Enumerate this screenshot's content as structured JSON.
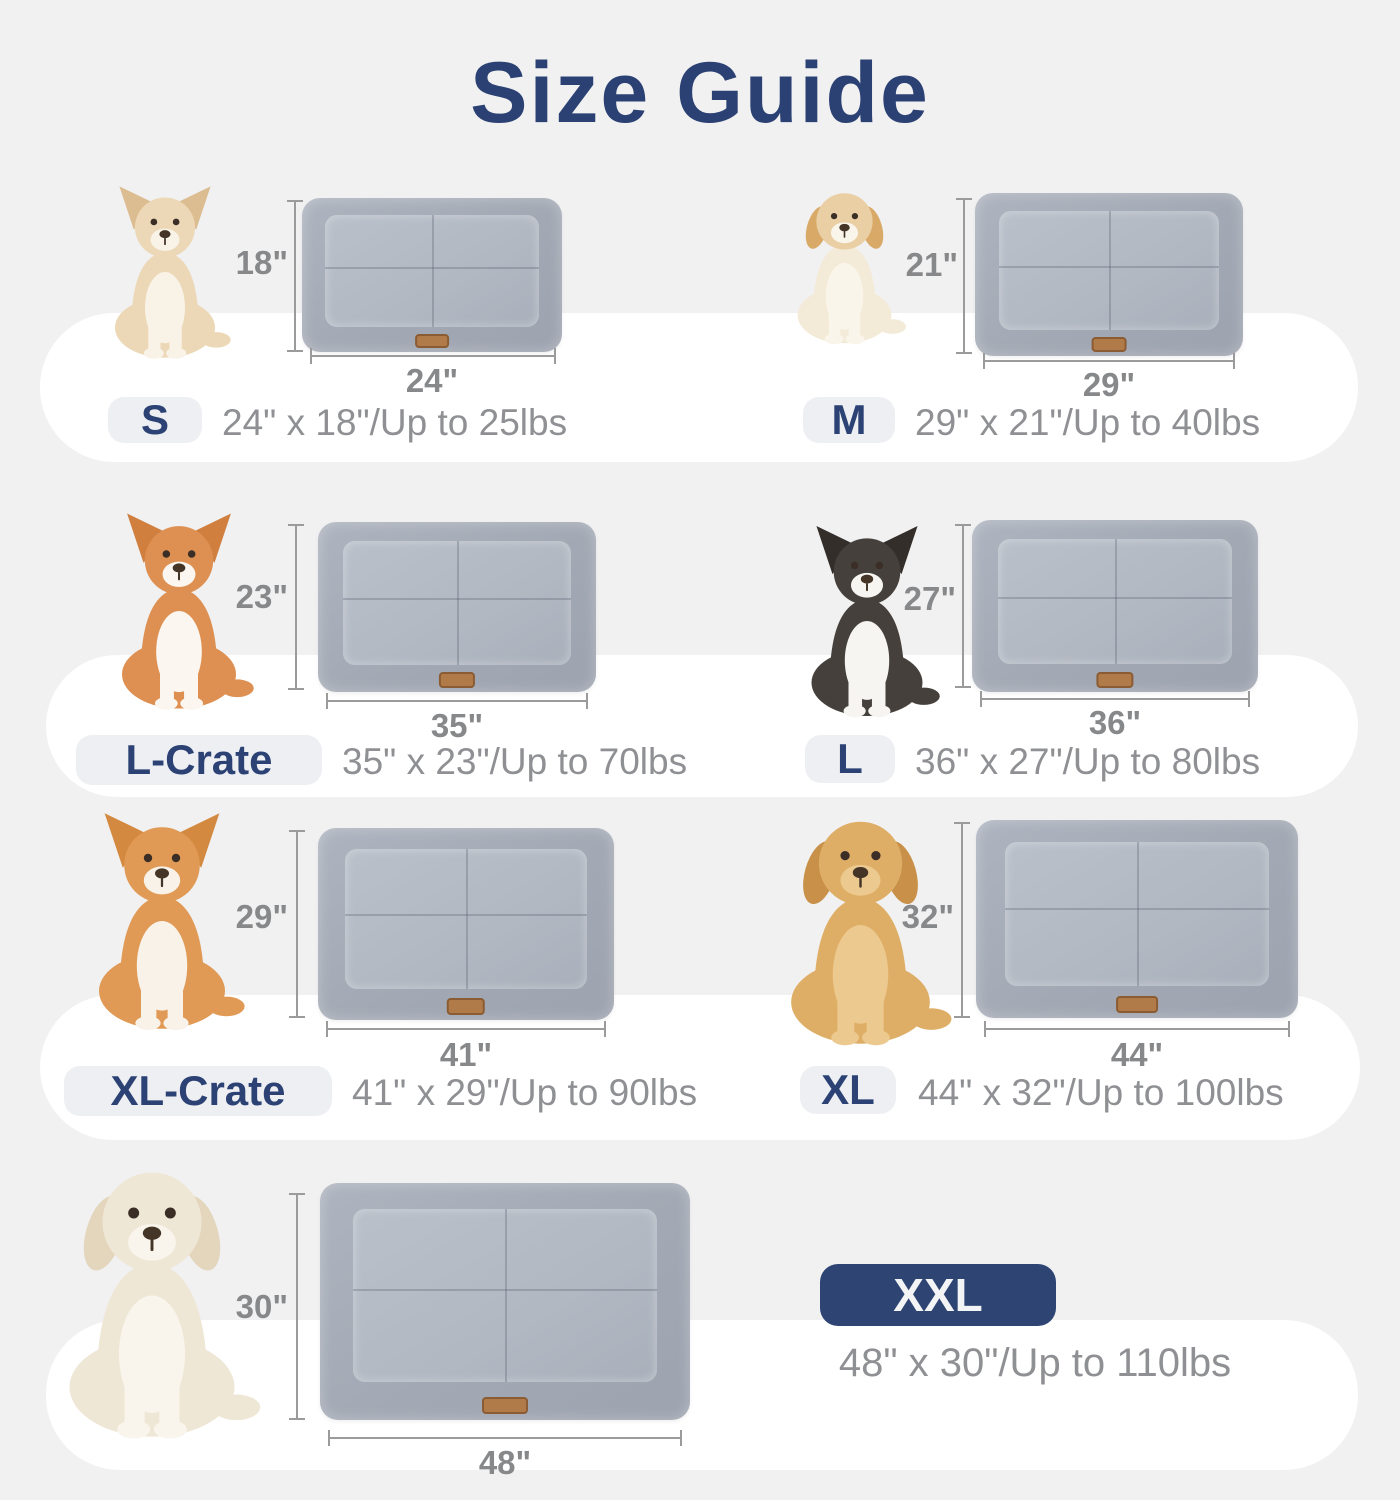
{
  "title": "Size Guide",
  "colors": {
    "background": "#f1f1f2",
    "band": "#ffffff",
    "navy": "#2c4274",
    "badge_bg": "#edeff3",
    "xxl_badge_bg": "#2e4573",
    "spec_text": "#8f9093",
    "dim_text": "#87888a",
    "mat_outer": "#a3a9b4",
    "mat_inner": "#b2b8c2",
    "tag_brown": "#b07a49"
  },
  "sizes": [
    {
      "label": "S",
      "spec": "24\" x 18\"/Up to 25lbs",
      "mat_width": "24\"",
      "mat_height": "18\"",
      "weight_limit": "Up to 25lbs",
      "dog": {
        "breed": "chihuahua",
        "ear_type": "pointy",
        "body": "#ecd8b6",
        "head": "#ecd8b6",
        "chest": "#f9f3e7",
        "ear": "#dcbd92"
      }
    },
    {
      "label": "M",
      "spec": "29\" x 21\"/Up to 40lbs",
      "mat_width": "29\"",
      "mat_height": "21\"",
      "weight_limit": "Up to 40lbs",
      "dog": {
        "breed": "maltese",
        "ear_type": "floppy",
        "body": "#f4ead8",
        "head": "#e9cfa3",
        "chest": "#faf5ea",
        "ear": "#d9a967"
      }
    },
    {
      "label": "L-Crate",
      "spec": "35\" x 23\"/Up to 70lbs",
      "mat_width": "35\"",
      "mat_height": "23\"",
      "weight_limit": "Up to 70lbs",
      "dog": {
        "breed": "corgi",
        "ear_type": "pointy",
        "body": "#dd9052",
        "head": "#dd9052",
        "chest": "#fbf7f0",
        "ear": "#d07f3f"
      }
    },
    {
      "label": "L",
      "spec": "36\" x 27\"/Up to 80lbs",
      "mat_width": "36\"",
      "mat_height": "27\"",
      "weight_limit": "Up to 80lbs",
      "dog": {
        "breed": "border-collie",
        "ear_type": "pointy",
        "body": "#45403b",
        "head": "#45403b",
        "chest": "#f7f5f2",
        "ear": "#332e2a"
      }
    },
    {
      "label": "XL-Crate",
      "spec": "41\" x 29\"/Up to 90lbs",
      "mat_width": "41\"",
      "mat_height": "29\"",
      "weight_limit": "Up to 90lbs",
      "dog": {
        "breed": "shiba-inu",
        "ear_type": "pointy",
        "body": "#e09a55",
        "head": "#e09a55",
        "chest": "#f8f2e8",
        "ear": "#d38a40"
      }
    },
    {
      "label": "XL",
      "spec": "44\" x 32\"/Up to 100lbs",
      "mat_width": "44\"",
      "mat_height": "32\"",
      "weight_limit": "Up to 100lbs",
      "dog": {
        "breed": "golden-retriever",
        "ear_type": "floppy",
        "body": "#dfae66",
        "head": "#dfae66",
        "chest": "#ecc98f",
        "ear": "#c89048"
      }
    },
    {
      "label": "XXL",
      "spec": "48\" x 30\"/Up to 110lbs",
      "mat_width": "48\"",
      "mat_height": "30\"",
      "weight_limit": "Up to 110lbs",
      "dog": {
        "breed": "white-labrador",
        "ear_type": "floppy",
        "body": "#efe7d6",
        "head": "#efe7d6",
        "chest": "#f9f5ec",
        "ear": "#e3d6bd"
      }
    }
  ]
}
